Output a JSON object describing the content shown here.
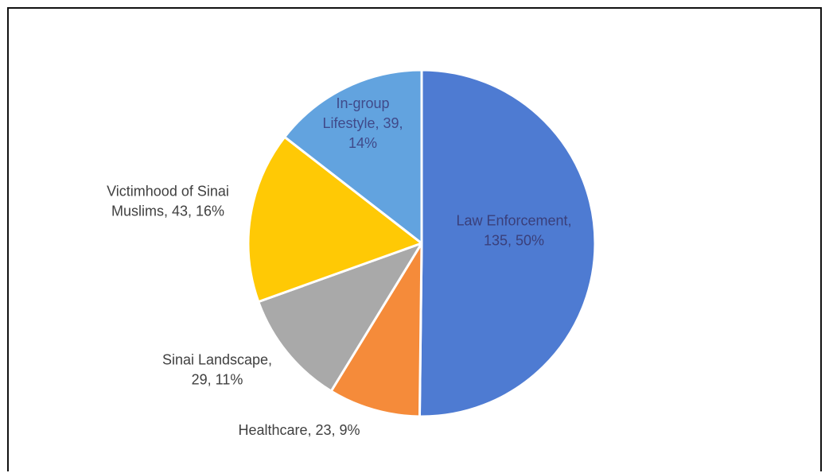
{
  "chart_data": {
    "type": "pie",
    "title": "",
    "slices": [
      {
        "label": "Law Enforcement",
        "value": 135,
        "percent": "50%",
        "color": "#4E7BD2",
        "text_lines": [
          "Law Enforcement,",
          "135, 50%"
        ]
      },
      {
        "label": "Healthcare",
        "value": 23,
        "percent": "9%",
        "color": "#F58B3A",
        "text_lines": [
          "Healthcare, 23, 9%"
        ]
      },
      {
        "label": "Sinai Landscape",
        "value": 29,
        "percent": "11%",
        "color": "#A9A9A9",
        "text_lines": [
          "Sinai Landscape,",
          "29, 11%"
        ]
      },
      {
        "label": "Victimhood of Sinai Muslims",
        "value": 43,
        "percent": "16%",
        "color": "#FFC905",
        "text_lines": [
          "Victimhood of Sinai",
          "Muslims, 43, 16%"
        ]
      },
      {
        "label": "In-group Lifestyle",
        "value": 39,
        "percent": "14%",
        "color": "#62A3DF",
        "text_lines": [
          "In-group",
          "Lifestyle, 39,",
          "14%"
        ]
      }
    ],
    "start_angle": "12 o'clock",
    "direction": "clockwise",
    "legend": "none",
    "data_labels": "category, value, percentage"
  }
}
